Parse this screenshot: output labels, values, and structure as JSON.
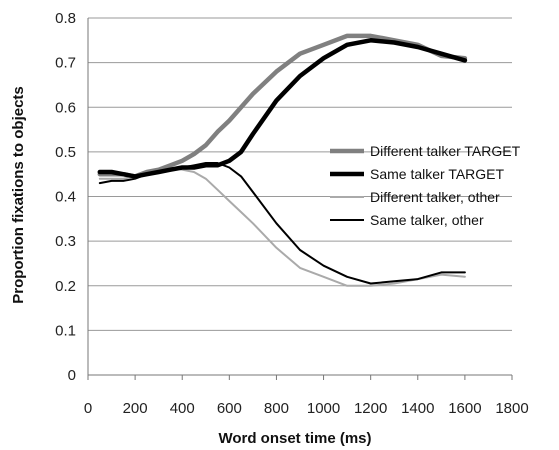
{
  "chart_data": {
    "type": "line",
    "title": "",
    "xlabel": "Word onset time (ms)",
    "ylabel": "Proportion fixations to objects",
    "xlim": [
      0,
      1800
    ],
    "ylim": [
      0,
      0.8
    ],
    "x_ticks": [
      0,
      200,
      400,
      600,
      800,
      1000,
      1200,
      1400,
      1600,
      1800
    ],
    "y_ticks": [
      0,
      0.1,
      0.2,
      0.3,
      0.4,
      0.5,
      0.6,
      0.7,
      0.8
    ],
    "x_tick_labels": [
      "0",
      "200",
      "400",
      "600",
      "800",
      "1000",
      "1200",
      "1400",
      "1600",
      "1800"
    ],
    "y_tick_labels": [
      "0",
      "0.1",
      "0.2",
      "0.3",
      "0.4",
      "0.5",
      "0.6",
      "0.7",
      "0.8"
    ],
    "grid": "horizontal",
    "legend_position": "right",
    "series": [
      {
        "name": "Different talker TARGET",
        "color": "#808080",
        "style": "thick",
        "x": [
          50,
          100,
          150,
          200,
          250,
          300,
          350,
          400,
          450,
          500,
          550,
          600,
          650,
          700,
          800,
          900,
          1000,
          1100,
          1200,
          1300,
          1400,
          1500,
          1600
        ],
        "y": [
          0.45,
          0.45,
          0.45,
          0.445,
          0.455,
          0.46,
          0.47,
          0.48,
          0.495,
          0.515,
          0.545,
          0.57,
          0.6,
          0.63,
          0.68,
          0.72,
          0.74,
          0.76,
          0.76,
          0.75,
          0.74,
          0.715,
          0.71
        ]
      },
      {
        "name": "Same talker TARGET",
        "color": "#000000",
        "style": "thick",
        "x": [
          50,
          100,
          150,
          200,
          250,
          300,
          350,
          400,
          450,
          500,
          550,
          600,
          650,
          700,
          800,
          900,
          1000,
          1100,
          1200,
          1300,
          1400,
          1500,
          1600
        ],
        "y": [
          0.455,
          0.455,
          0.45,
          0.445,
          0.45,
          0.455,
          0.46,
          0.465,
          0.465,
          0.47,
          0.47,
          0.48,
          0.5,
          0.54,
          0.615,
          0.67,
          0.71,
          0.74,
          0.75,
          0.745,
          0.735,
          0.72,
          0.705
        ]
      },
      {
        "name": "Different talker, other",
        "color": "#aaaaaa",
        "style": "thin",
        "x": [
          50,
          100,
          150,
          200,
          250,
          300,
          350,
          400,
          450,
          500,
          550,
          600,
          650,
          700,
          800,
          900,
          1000,
          1100,
          1200,
          1300,
          1400,
          1500,
          1600
        ],
        "y": [
          0.44,
          0.44,
          0.44,
          0.445,
          0.455,
          0.46,
          0.465,
          0.46,
          0.455,
          0.44,
          0.415,
          0.39,
          0.365,
          0.34,
          0.285,
          0.24,
          0.22,
          0.2,
          0.2,
          0.205,
          0.215,
          0.225,
          0.22
        ]
      },
      {
        "name": "Same talker, other",
        "color": "#000000",
        "style": "thin",
        "x": [
          50,
          100,
          150,
          200,
          250,
          300,
          350,
          400,
          450,
          500,
          550,
          600,
          650,
          700,
          800,
          900,
          1000,
          1100,
          1200,
          1300,
          1400,
          1500,
          1600
        ],
        "y": [
          0.43,
          0.435,
          0.435,
          0.44,
          0.45,
          0.455,
          0.46,
          0.465,
          0.47,
          0.475,
          0.475,
          0.465,
          0.445,
          0.41,
          0.34,
          0.28,
          0.245,
          0.22,
          0.205,
          0.21,
          0.215,
          0.23,
          0.23
        ]
      }
    ]
  }
}
